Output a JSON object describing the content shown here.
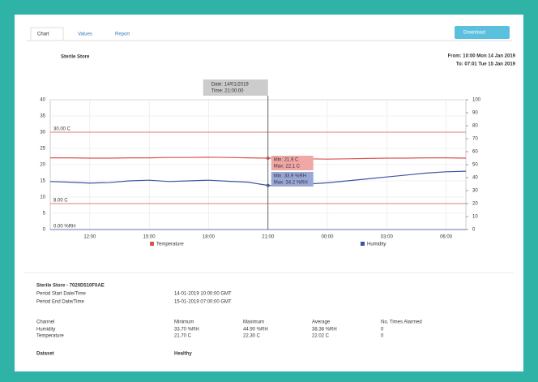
{
  "tabs": [
    "Chart",
    "Values",
    "Report"
  ],
  "download": "Download",
  "chart_data": {
    "type": "line",
    "title": "Sterile Store",
    "range_from": "From: 10:00 Mon 14 Jan 2019",
    "range_to": "To: 07:01 Tue 15 Jan 2019",
    "categories": [
      null,
      null,
      "12:00",
      null,
      null,
      "15:00",
      null,
      null,
      "18:00",
      null,
      null,
      "21:00",
      null,
      null,
      "00:00",
      null,
      null,
      "03:00",
      null,
      null,
      "06:00",
      null
    ],
    "ylim": [
      0,
      40
    ],
    "yticks": [
      0,
      5,
      10,
      15,
      20,
      25,
      30,
      35,
      40
    ],
    "y2lim": [
      0,
      100
    ],
    "y2ticks": [
      0,
      10,
      20,
      30,
      40,
      50,
      60,
      70,
      80,
      90,
      100
    ],
    "grid": true,
    "series": [
      {
        "name": "Temperature",
        "color": "#d9534f",
        "values": [
          22.1,
          22.1,
          22.0,
          22.0,
          22.1,
          22.1,
          22.2,
          22.2,
          22.3,
          22.2,
          22.1,
          22.0,
          21.9,
          21.8,
          21.7,
          21.8,
          21.9,
          22.0,
          22.0,
          22.1,
          22.1,
          22.0
        ]
      },
      {
        "name": "Humidity",
        "color": "#3d55a5",
        "axis": "y2",
        "values": [
          37,
          36.5,
          35.8,
          36.2,
          37.5,
          38,
          37,
          37.5,
          38,
          37.2,
          36.5,
          34,
          33.7,
          35,
          36,
          37.5,
          39,
          40.5,
          42,
          43.5,
          44.5,
          44.9
        ]
      }
    ],
    "thresholds": [
      {
        "value": 30,
        "label": "30.00 C"
      },
      {
        "value": 8,
        "label": "8.00 C"
      },
      {
        "value": 0,
        "label": "0.00 %RH",
        "axis": "y2"
      }
    ],
    "cursor": {
      "date": "Date: 14/01/2019",
      "time": "Time: 21:00:00",
      "temp_lines": [
        "Min: 21.9 C",
        "Max: 22.1 C"
      ],
      "hum_lines": [
        "Min: 33.9 %RH",
        "Max: 34.2 %RH"
      ]
    }
  },
  "summary": {
    "device": "Sterile Store - 7020D510F0AE",
    "period": [
      [
        "Period Start Date/Time",
        "14-01-2019 10:00:00 GMT"
      ],
      [
        "Period End Date/Time",
        "15-01-2019 07:00:00 GMT"
      ]
    ],
    "table": {
      "header": [
        "Channel",
        "Minimum",
        "Maximum",
        "Average",
        "No. Times Alarmed"
      ],
      "rows": [
        [
          "Humidity",
          "33.70 %RH",
          "44.90 %RH",
          "38.38 %RH",
          "0"
        ],
        [
          "Temperature",
          "21.70 C",
          "22.30 C",
          "22.02 C",
          "0"
        ]
      ]
    },
    "status": [
      "Dataset",
      "Healthy"
    ]
  }
}
